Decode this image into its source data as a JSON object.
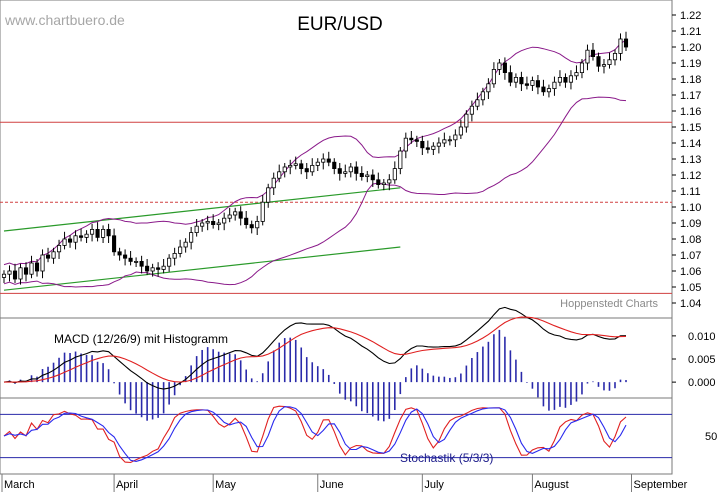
{
  "watermark": "www.chartbuero.de",
  "source_note": "Hoppenstedt Charts",
  "chart_data": [
    {
      "type": "candlestick",
      "title": "EUR/USD",
      "ylim": [
        1.04,
        1.225
      ],
      "y_ticks": [
        "1.04",
        "1.05",
        "1.06",
        "1.07",
        "1.08",
        "1.09",
        "1.10",
        "1.11",
        "1.12",
        "1.13",
        "1.14",
        "1.15",
        "1.16",
        "1.17",
        "1.18",
        "1.19",
        "1.20",
        "1.21",
        "1.22"
      ],
      "x_months": [
        "March",
        "April",
        "May",
        "June",
        "July",
        "August",
        "September"
      ],
      "overlays": [
        "Bollinger bands",
        "green trend channel"
      ],
      "horizontal_lines": [
        {
          "value": 1.153,
          "style": "solid",
          "color": "#d04040"
        },
        {
          "value": 1.103,
          "style": "dashed",
          "color": "#d04040"
        },
        {
          "value": 1.046,
          "style": "solid",
          "color": "#d04040"
        }
      ],
      "approx_closes": [
        1.058,
        1.06,
        1.055,
        1.062,
        1.058,
        1.065,
        1.06,
        1.07,
        1.068,
        1.072,
        1.076,
        1.08,
        1.078,
        1.082,
        1.081,
        1.083,
        1.086,
        1.081,
        1.086,
        1.082,
        1.072,
        1.07,
        1.068,
        1.066,
        1.066,
        1.063,
        1.06,
        1.062,
        1.061,
        1.063,
        1.068,
        1.071,
        1.075,
        1.078,
        1.084,
        1.088,
        1.09,
        1.091,
        1.089,
        1.09,
        1.093,
        1.095,
        1.097,
        1.093,
        1.089,
        1.087,
        1.091,
        1.103,
        1.112,
        1.118,
        1.122,
        1.125,
        1.126,
        1.127,
        1.124,
        1.122,
        1.126,
        1.128,
        1.13,
        1.128,
        1.124,
        1.121,
        1.122,
        1.125,
        1.121,
        1.119,
        1.12,
        1.117,
        1.114,
        1.115,
        1.117,
        1.124,
        1.135,
        1.143,
        1.142,
        1.141,
        1.137,
        1.136,
        1.138,
        1.14,
        1.142,
        1.142,
        1.145,
        1.15,
        1.158,
        1.163,
        1.167,
        1.172,
        1.177,
        1.186,
        1.19,
        1.184,
        1.178,
        1.181,
        1.177,
        1.176,
        1.179,
        1.175,
        1.172,
        1.174,
        1.178,
        1.181,
        1.178,
        1.182,
        1.184,
        1.19,
        1.198,
        1.194,
        1.188,
        1.189,
        1.192,
        1.196,
        1.205,
        1.2
      ]
    },
    {
      "type": "line",
      "title": "MACD (12/26/9) mit Histogramm",
      "y_ticks": [
        "0.010",
        "0.005",
        "0.000"
      ],
      "series": [
        "MACD",
        "Signal",
        "Histogramm"
      ]
    },
    {
      "type": "line",
      "title": "Stochastik (5/3/3)",
      "y_ticks": [
        "50"
      ],
      "series": [
        "%K",
        "%D"
      ]
    }
  ],
  "colors": {
    "candle_up": "#ffffff",
    "candle_down": "#000000",
    "bollinger": "#8a1a8a",
    "trend": "#2a9a2a",
    "level_line": "#d04040",
    "macd_line": "#000000",
    "signal_line": "#e02020",
    "histogram": "#2a2aaa",
    "stoch_k": "#e02020",
    "stoch_d": "#2a2aee",
    "stoch_level": "#2a2aaa"
  }
}
